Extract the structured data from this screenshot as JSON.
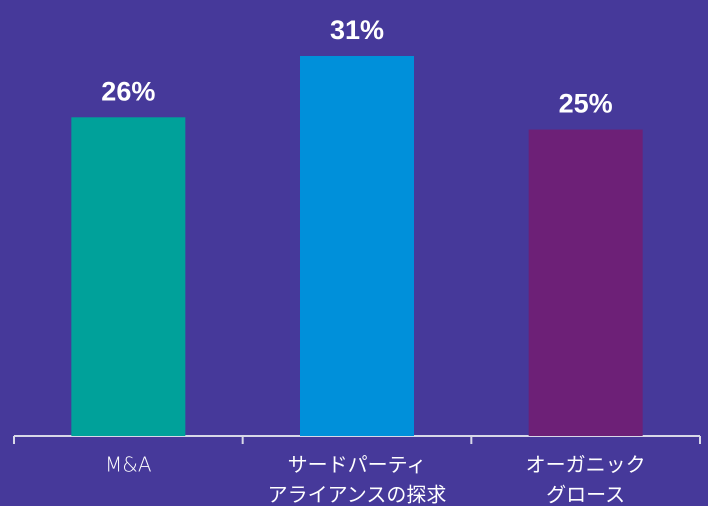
{
  "chart_data": {
    "type": "bar",
    "categories": [
      [
        "M&A"
      ],
      [
        "サードパーティ",
        "アライアンスの探求"
      ],
      [
        "オーガニック",
        "グロース"
      ]
    ],
    "values": [
      26,
      31,
      25
    ],
    "value_labels": [
      "26%",
      "31%",
      "25%"
    ],
    "colors": [
      "#00a19a",
      "#0090da",
      "#6d2077"
    ]
  }
}
